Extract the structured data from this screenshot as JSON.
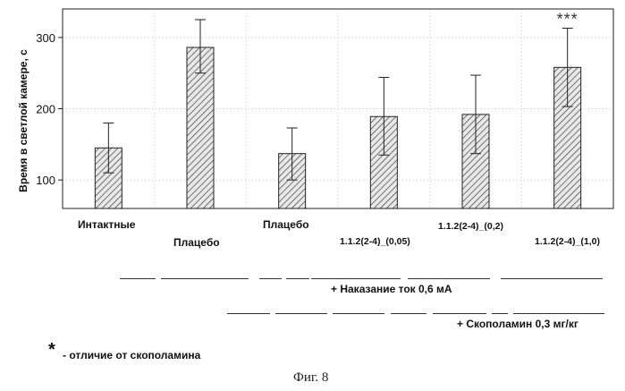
{
  "chart_data": {
    "type": "bar",
    "ylabel": "Время в светлой камере, с",
    "ylim": [
      60,
      340
    ],
    "yticks": [
      100,
      200,
      300
    ],
    "grid": true,
    "categories": [
      "Интактные",
      "Плацебо",
      "Плацебо",
      "1.1.2(2-4)_(0,05)",
      "1.1.2(2-4)_(0,2)",
      "1.1.2(2-4)_(1,0)"
    ],
    "values": [
      145,
      286,
      137,
      189,
      192,
      258
    ],
    "errors": [
      {
        "low": 110,
        "high": 180
      },
      {
        "low": 250,
        "high": 325
      },
      {
        "low": 100,
        "high": 173
      },
      {
        "low": 135,
        "high": 244
      },
      {
        "low": 137,
        "high": 247
      },
      {
        "low": 203,
        "high": 313
      }
    ],
    "annotations": [
      {
        "category_index": 5,
        "text": "***"
      }
    ],
    "colors": {
      "bar_fill": "#e8e8e8",
      "hatch": "#333333",
      "axis": "#222222",
      "grid": "#c8c8c8"
    }
  },
  "group_lines": {
    "punishment_label": "+ Наказание ток 0,6 мА",
    "scopolamine_label": "+ Скополамин 0,3 мг/кг"
  },
  "footnote": {
    "symbol": "*",
    "text": "- отличие от скополамина"
  },
  "figure_caption": "Фиг. 8"
}
